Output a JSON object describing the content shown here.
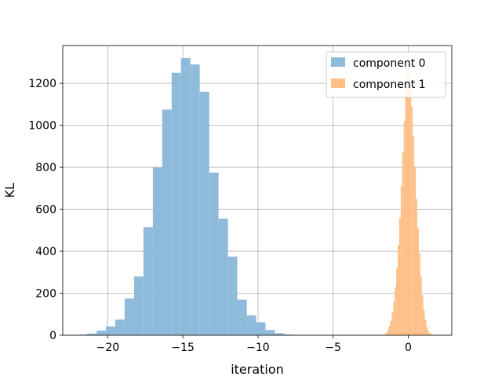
{
  "chart_data": {
    "type": "bar",
    "title": "",
    "xlabel": "iteration",
    "ylabel": "KL",
    "xlim": [
      -23.0,
      2.9
    ],
    "ylim": [
      0,
      1380
    ],
    "xticks": [
      -20,
      -15,
      -10,
      -5,
      0
    ],
    "xtick_labels": [
      "−20",
      "−15",
      "−10",
      "−5",
      "0"
    ],
    "yticks": [
      0,
      200,
      400,
      600,
      800,
      1000,
      1200
    ],
    "ytick_labels": [
      "0",
      "200",
      "400",
      "600",
      "800",
      "1000",
      "1200"
    ],
    "grid": true,
    "legend_position": "top-right",
    "series": [
      {
        "name": "component 0",
        "color": "#8fbbda",
        "bin_edges": [
          -22.0,
          -21.38,
          -20.75,
          -20.13,
          -19.5,
          -18.88,
          -18.25,
          -17.63,
          -17.0,
          -16.38,
          -15.75,
          -15.13,
          -14.5,
          -13.88,
          -13.25,
          -12.63,
          -12.0,
          -11.38,
          -10.75,
          -10.13,
          -9.5,
          -8.88,
          -8.25,
          -7.63,
          -7.0
        ],
        "values": [
          3,
          8,
          22,
          42,
          75,
          175,
          280,
          515,
          800,
          1075,
          1250,
          1320,
          1290,
          1160,
          775,
          555,
          375,
          170,
          95,
          62,
          25,
          10,
          4,
          1
        ]
      },
      {
        "name": "component 1",
        "color": "#ffbf86",
        "bin_edges": [
          -1.6,
          -1.5,
          -1.4,
          -1.3,
          -1.2,
          -1.1,
          -1.0,
          -0.9,
          -0.8,
          -0.7,
          -0.6,
          -0.5,
          -0.4,
          -0.3,
          -0.2,
          -0.1,
          0.0,
          0.1,
          0.2,
          0.3,
          0.4,
          0.5,
          0.6,
          0.7,
          0.8,
          0.9,
          1.0,
          1.1,
          1.2,
          1.3,
          1.4,
          1.5,
          1.6
        ],
        "values": [
          5,
          12,
          25,
          45,
          70,
          110,
          160,
          230,
          320,
          430,
          560,
          710,
          870,
          1020,
          1160,
          1260,
          1300,
          1200,
          1090,
          950,
          800,
          650,
          510,
          390,
          280,
          190,
          120,
          75,
          40,
          20,
          10,
          4
        ]
      }
    ]
  }
}
